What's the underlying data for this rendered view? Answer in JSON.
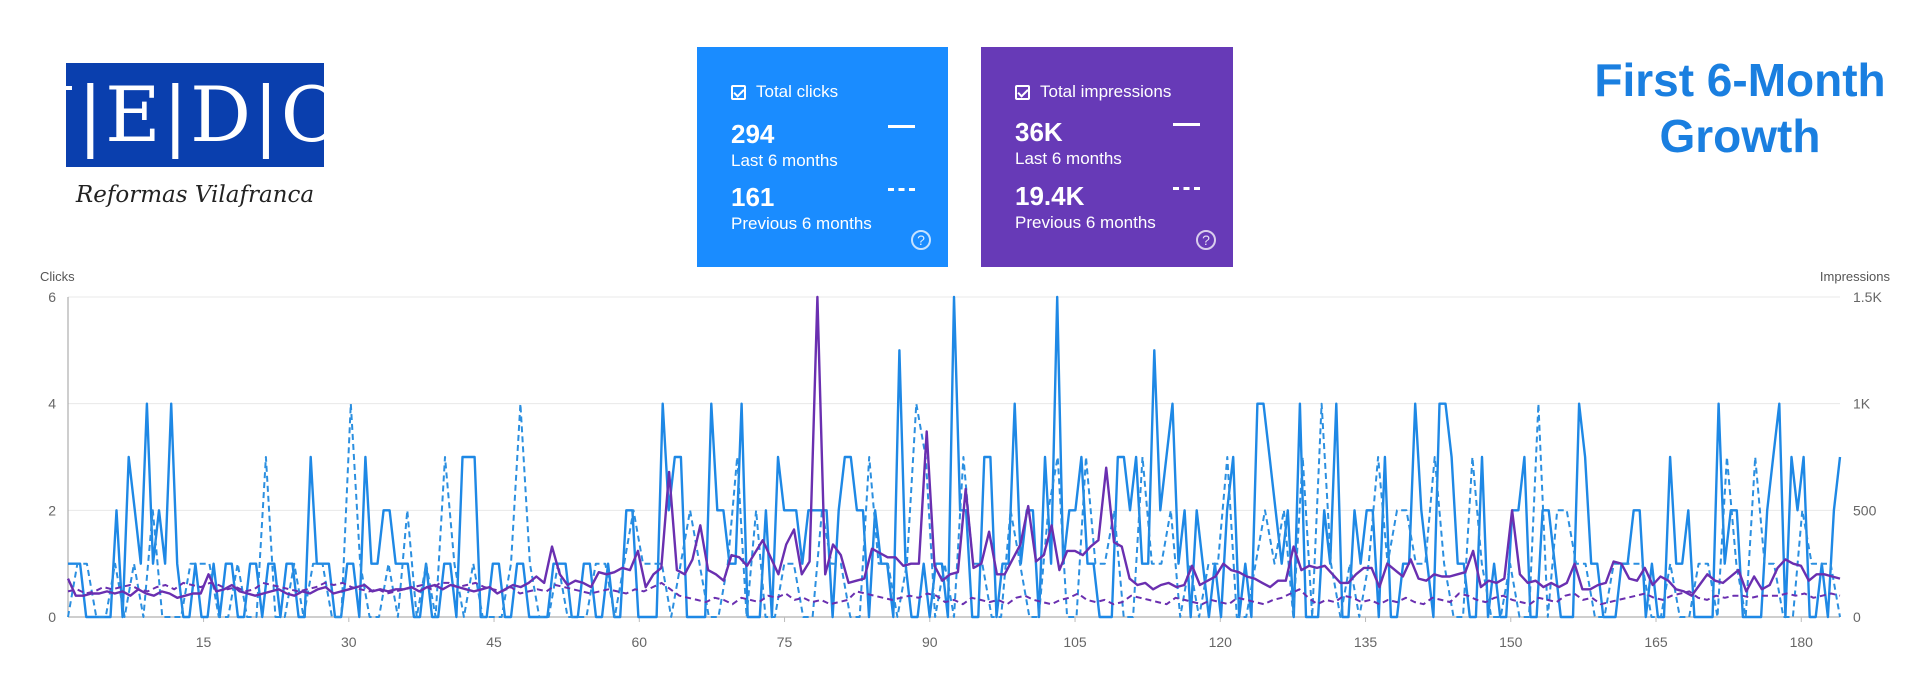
{
  "logo": {
    "letters": "J|E|D|O",
    "subtitle": "Reformas Vilafranca"
  },
  "title": {
    "line1": "First 6-Month",
    "line2": "Growth"
  },
  "cards": {
    "clicks": {
      "label": "Total clicks",
      "current_value": "294",
      "current_period": "Last 6 months",
      "previous_value": "161",
      "previous_period": "Previous 6 months",
      "color": "#1a8cff"
    },
    "impressions": {
      "label": "Total impressions",
      "current_value": "36K",
      "current_period": "Last 6 months",
      "previous_value": "19.4K",
      "previous_period": "Previous 6 months",
      "color": "#673ab7"
    }
  },
  "chart_data": {
    "type": "line",
    "title": "",
    "ylabel_left": "Clicks",
    "ylabel_right": "Impressions",
    "x_ticks": [
      15,
      30,
      45,
      60,
      75,
      90,
      105,
      120,
      135,
      150,
      165,
      180
    ],
    "xlim": [
      1,
      184
    ],
    "ylim_left": [
      0,
      6
    ],
    "ylim_right": [
      0,
      1500
    ],
    "y_ticks_left": [
      "0",
      "2",
      "4",
      "6"
    ],
    "y_ticks_right": [
      "0",
      "500",
      "1K",
      "1.5K"
    ],
    "grid": true,
    "colors": {
      "clicks": "#1e88e5",
      "impressions": "#6a2fb0"
    },
    "series": [
      {
        "key": "clicks_current",
        "axis": "left",
        "style": "solid",
        "color": "#1e88e5",
        "values": [
          1,
          1,
          1,
          0,
          0,
          0,
          0,
          0,
          2,
          0,
          3,
          2,
          1,
          4,
          1,
          2,
          1,
          4,
          1,
          0,
          0,
          1,
          0,
          0,
          1,
          0,
          1,
          1,
          0,
          0,
          1,
          1,
          0,
          1,
          1,
          0,
          1,
          1,
          0,
          0,
          3,
          1,
          1,
          1,
          0,
          0,
          1,
          1,
          0,
          3,
          1,
          1,
          2,
          2,
          1,
          1,
          1,
          0,
          0,
          1,
          0,
          0,
          1,
          1,
          0,
          3,
          3,
          3,
          0,
          0,
          1,
          1,
          0,
          0,
          1,
          1,
          0,
          0,
          0,
          0,
          1,
          1,
          1,
          0,
          0,
          1,
          1,
          0,
          0,
          1,
          0,
          0,
          2,
          2,
          0,
          0,
          0,
          0,
          4,
          2,
          3,
          3,
          0,
          0,
          0,
          0,
          4,
          2,
          2,
          1,
          1,
          4,
          0,
          0,
          0,
          2,
          0,
          3,
          2,
          2,
          2,
          1,
          2,
          2,
          2,
          2,
          0,
          2,
          3,
          3,
          2,
          2,
          0,
          2,
          1,
          1,
          0,
          5,
          1,
          0,
          0,
          1,
          0,
          1,
          1,
          0,
          6,
          2,
          2,
          0,
          0,
          3,
          3,
          0,
          1,
          1,
          4,
          1,
          2,
          2,
          0,
          3,
          1,
          6,
          1,
          2,
          2,
          3,
          1,
          1,
          0,
          0,
          0,
          3,
          3,
          2,
          3,
          1,
          1,
          5,
          2,
          3,
          4,
          1,
          2,
          0,
          2,
          1,
          0,
          1,
          0,
          2,
          3,
          0,
          1,
          0,
          4,
          4,
          3,
          2,
          1,
          2,
          0,
          4,
          0,
          0,
          0,
          2,
          1,
          4,
          0,
          0,
          2,
          1,
          2,
          2,
          0,
          3,
          0,
          0,
          1,
          1,
          4,
          2,
          1,
          0,
          4,
          4,
          3,
          1,
          1,
          0,
          0,
          3,
          0,
          1,
          0,
          0,
          2,
          2,
          3,
          0,
          0,
          2,
          2,
          1,
          0,
          0,
          0,
          4,
          3,
          1,
          1,
          0,
          0,
          0,
          1,
          1,
          2,
          2,
          0,
          1,
          0,
          0,
          3,
          1,
          1,
          2,
          0,
          0,
          0,
          0,
          4,
          1,
          2,
          2,
          0,
          0,
          0,
          0,
          2,
          3,
          4,
          0,
          3,
          2,
          3,
          0,
          0,
          1,
          0,
          2,
          3
        ]
      },
      {
        "key": "clicks_previous",
        "axis": "left",
        "style": "dashed",
        "color": "#2b8fe0",
        "values": [
          0,
          1,
          1,
          0,
          0,
          1,
          0,
          1,
          0,
          2,
          0,
          0,
          0,
          1,
          1,
          1,
          0,
          0,
          1,
          0,
          0,
          3,
          0,
          0,
          1,
          0,
          1,
          1,
          0,
          0,
          4,
          1,
          0,
          0,
          1,
          0,
          2,
          0,
          1,
          0,
          3,
          1,
          0,
          1,
          0,
          0,
          0,
          1,
          4,
          1,
          0,
          0,
          1,
          0,
          0,
          0,
          1,
          1,
          0,
          1,
          2,
          1,
          1,
          1,
          0,
          1,
          2,
          1,
          0,
          0,
          1,
          3,
          0,
          2,
          0,
          0,
          1,
          1,
          0,
          0,
          2,
          1,
          1,
          0,
          0,
          3,
          1,
          1,
          0,
          1,
          4,
          3,
          0,
          1,
          0,
          3,
          1,
          1,
          0,
          0,
          2,
          1,
          0,
          0,
          2,
          3,
          0,
          0,
          3,
          1,
          1,
          2,
          0,
          0,
          3,
          1,
          1,
          2,
          0,
          1,
          0,
          1,
          1,
          3,
          0,
          0,
          1,
          2,
          1,
          2,
          0,
          3,
          0,
          4,
          1,
          0,
          1,
          0,
          1,
          3,
          1,
          2,
          2,
          1,
          1,
          3,
          1,
          0,
          0,
          3,
          1,
          0,
          0,
          1,
          0,
          0,
          4,
          0,
          2,
          2,
          1,
          1,
          0,
          0,
          1,
          1,
          1,
          1,
          0,
          0,
          1,
          0,
          0,
          1,
          1,
          0,
          3,
          1,
          0,
          3,
          1,
          1,
          0,
          0,
          2,
          1,
          1,
          1,
          0
        ]
      },
      {
        "key": "impressions_current",
        "axis": "right",
        "style": "solid",
        "color": "#6a2fb0",
        "values": [
          180,
          100,
          100,
          110,
          110,
          120,
          110,
          120,
          100,
          130,
          110,
          100,
          120,
          110,
          90,
          100,
          110,
          110,
          200,
          120,
          130,
          150,
          120,
          110,
          100,
          110,
          120,
          130,
          110,
          100,
          120,
          110,
          130,
          140,
          110,
          120,
          130,
          140,
          150,
          120,
          130,
          120,
          130,
          130,
          140,
          120,
          140,
          150,
          130,
          150,
          140,
          130,
          120,
          130,
          140,
          110,
          130,
          150,
          140,
          160,
          190,
          160,
          330,
          200,
          150,
          170,
          160,
          140,
          210,
          200,
          210,
          230,
          220,
          310,
          140,
          200,
          230,
          680,
          220,
          200,
          270,
          430,
          220,
          200,
          170,
          290,
          280,
          240,
          300,
          360,
          280,
          200,
          340,
          410,
          200,
          260,
          1500,
          200,
          340,
          290,
          160,
          170,
          180,
          320,
          300,
          280,
          280,
          240,
          250,
          250,
          870,
          240,
          170,
          200,
          210,
          600,
          230,
          250,
          400,
          200,
          200,
          270,
          340,
          520,
          260,
          290,
          430,
          220,
          310,
          310,
          290,
          330,
          360,
          700,
          350,
          330,
          180,
          150,
          160,
          130,
          150,
          160,
          140,
          150,
          240,
          150,
          170,
          190,
          250,
          220,
          210,
          190,
          180,
          160,
          140,
          170,
          170,
          330,
          220,
          240,
          230,
          240,
          200,
          160,
          160,
          200,
          230,
          230,
          140,
          250,
          220,
          190,
          270,
          180,
          170,
          200,
          190,
          190,
          200,
          210,
          310,
          140,
          170,
          160,
          180,
          500,
          200,
          160,
          170,
          140,
          160,
          140,
          160,
          250,
          130,
          130,
          150,
          160,
          260,
          250,
          180,
          170,
          230,
          150,
          190,
          170,
          130,
          120,
          100,
          150,
          200,
          170,
          160,
          190,
          220,
          120,
          190,
          130,
          150,
          230,
          270,
          250,
          240,
          170,
          200,
          200,
          190,
          180
        ]
      },
      {
        "key": "impressions_previous",
        "axis": "right",
        "style": "dashed",
        "color": "#6a2fb0",
        "values": [
          120,
          130,
          110,
          120,
          140,
          130,
          140,
          150,
          130,
          120,
          140,
          150,
          130,
          160,
          150,
          140,
          160,
          150,
          130,
          140,
          120,
          130,
          160,
          150,
          140,
          130,
          120,
          130,
          140,
          160,
          150,
          160,
          140,
          130,
          120,
          130,
          110,
          120,
          130,
          140,
          150,
          130,
          160,
          160,
          140,
          150,
          160,
          140,
          130,
          120,
          140,
          110,
          120,
          130,
          120,
          150,
          140,
          130,
          120,
          110,
          120,
          130,
          120,
          110,
          130,
          120,
          140,
          160,
          130,
          100,
          90,
          80,
          70,
          90,
          80,
          60,
          90,
          80,
          70,
          100,
          90,
          110,
          80,
          90,
          70,
          80,
          60,
          70,
          80,
          120,
          110,
          100,
          90,
          80,
          90,
          100,
          90,
          110,
          100,
          70,
          80,
          60,
          90,
          80,
          70,
          80,
          60,
          90,
          100,
          80,
          70,
          60,
          80,
          90,
          110,
          80,
          70,
          80,
          60,
          70,
          100,
          90,
          80,
          70,
          60,
          90,
          80,
          70,
          60,
          80,
          70,
          60,
          90,
          80,
          70,
          60,
          80,
          90,
          110,
          130,
          90,
          60,
          80,
          70,
          100,
          90,
          70,
          80,
          60,
          80,
          70,
          90,
          70,
          60,
          90,
          80,
          70,
          110,
          100,
          80,
          70,
          90,
          100,
          80,
          70,
          60,
          90,
          80,
          70,
          100,
          110,
          80,
          90,
          60,
          70,
          80,
          90,
          100,
          110,
          90,
          80,
          100,
          110,
          120,
          90,
          80,
          100,
          90,
          100,
          100,
          90,
          100,
          100,
          100,
          110,
          100,
          110,
          90,
          100,
          110,
          100
        ]
      }
    ]
  }
}
